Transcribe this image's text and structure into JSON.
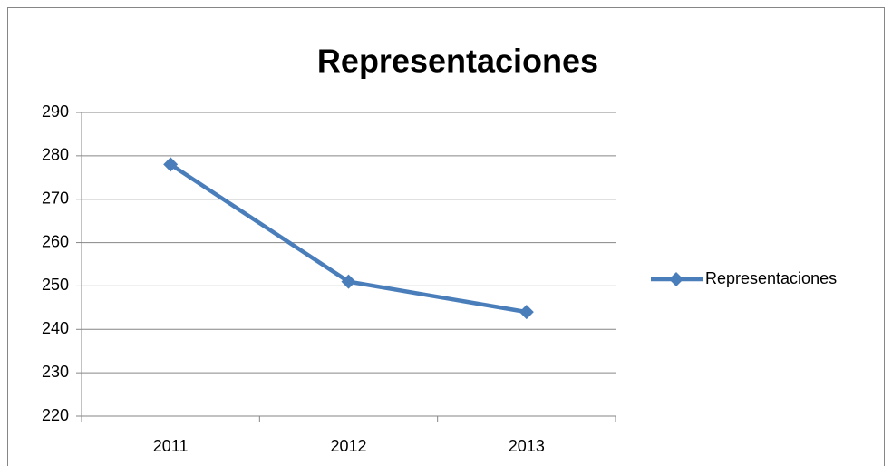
{
  "chart_data": {
    "type": "line",
    "title": "Representaciones",
    "categories": [
      "2011",
      "2012",
      "2013"
    ],
    "series": [
      {
        "name": "Representaciones",
        "color": "#4a7ebb",
        "values": [
          278,
          251,
          244
        ]
      }
    ],
    "ylim": [
      220,
      290
    ],
    "yticks": [
      220,
      230,
      240,
      250,
      260,
      270,
      280,
      290
    ],
    "grid": true,
    "legend": "right"
  }
}
